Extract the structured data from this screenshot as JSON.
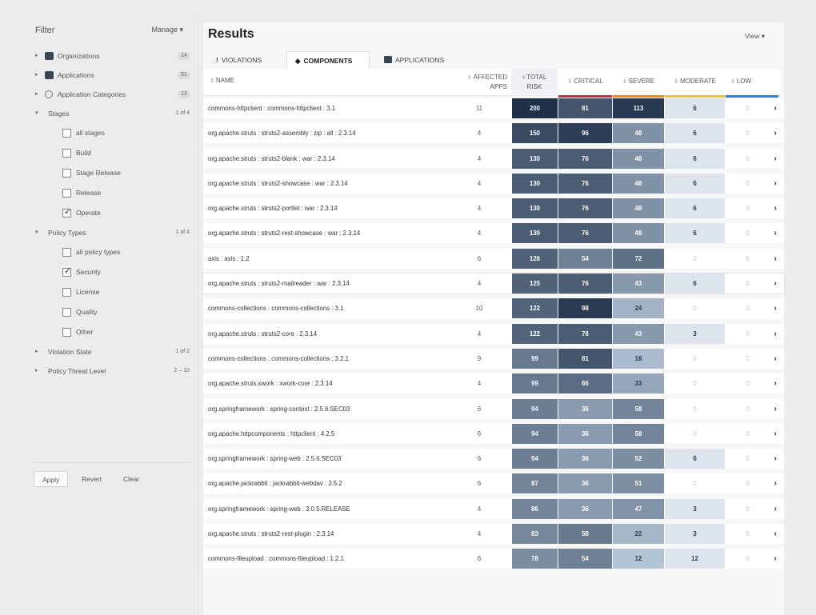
{
  "sidebar": {
    "title": "Filter",
    "manage_label": "Manage ▾",
    "facets_top": [
      {
        "chev": "▸",
        "icon": "dark",
        "label": "Organizations",
        "count": "14"
      },
      {
        "chev": "▸",
        "icon": "dark",
        "label": "Applications",
        "count": "51"
      },
      {
        "chev": "▸",
        "icon": "circle",
        "label": "Application Categories",
        "count": "13"
      }
    ],
    "stages": {
      "chev": "▾",
      "label": "Stages",
      "count": "1 of 4"
    },
    "stage_options": [
      {
        "label": "all stages",
        "checked": false
      },
      {
        "label": "Build",
        "checked": false
      },
      {
        "label": "Stage Release",
        "checked": false
      },
      {
        "label": "Release",
        "checked": false
      },
      {
        "label": "Operate",
        "checked": true
      }
    ],
    "policy_types": {
      "chev": "▾",
      "label": "Policy Types",
      "count": "1 of 4"
    },
    "policy_options": [
      {
        "label": "all policy types",
        "checked": false
      },
      {
        "label": "Security",
        "checked": true
      },
      {
        "label": "License",
        "checked": false
      },
      {
        "label": "Quality",
        "checked": false
      },
      {
        "label": "Other",
        "checked": false
      }
    ],
    "violation_state": {
      "chev": "▸",
      "label": "Violation State",
      "count": "1 of 2"
    },
    "threat_level": {
      "chev": "▸",
      "label": "Policy Threat Level",
      "count": "2 – 10"
    },
    "apply_label": "Apply",
    "revert_label": "Revert",
    "clear_label": "Clear"
  },
  "main": {
    "title": "Results",
    "view_label": "View ▾",
    "tabs": [
      {
        "icon": "!",
        "label": "Violations"
      },
      {
        "icon": "◆",
        "label": "Components"
      },
      {
        "icon": "box",
        "label": "Applications"
      }
    ],
    "headers": {
      "name": "Name",
      "affected_line1": "Affected",
      "affected_line2": "Apps",
      "total_line1": "Total",
      "total_line2": "Risk",
      "critical": "Critical",
      "severe": "Severe",
      "moderate": "Moderate",
      "low": "Low",
      "sort_icon": "⇕",
      "sort_desc_icon": "▾"
    },
    "stripe_colors": {
      "critical": "#b03a48",
      "severe": "#e08a2c",
      "moderate": "#e9c04a",
      "low": "#3a7bd5"
    },
    "rows": [
      {
        "name": "commons-httpclient : commons-httpclient : 3.1",
        "apps": "11",
        "total": "200",
        "critical": "81",
        "severe": "113",
        "moderate": "6",
        "low": "0"
      },
      {
        "name": "org.apache.struts : struts2-assembly : zip : all : 2.3.14",
        "apps": "4",
        "total": "150",
        "critical": "96",
        "severe": "48",
        "moderate": "6",
        "low": "0"
      },
      {
        "name": "org.apache.struts : struts2-blank : war : 2.3.14",
        "apps": "4",
        "total": "130",
        "critical": "76",
        "severe": "48",
        "moderate": "6",
        "low": "0"
      },
      {
        "name": "org.apache.struts : struts2-showcase : war : 2.3.14",
        "apps": "4",
        "total": "130",
        "critical": "76",
        "severe": "48",
        "moderate": "6",
        "low": "0"
      },
      {
        "name": "org.apache.struts : struts2-portlet : war : 2.3.14",
        "apps": "4",
        "total": "130",
        "critical": "76",
        "severe": "48",
        "moderate": "6",
        "low": "0"
      },
      {
        "name": "org.apache.struts : struts2-rest-showcase : war : 2.3.14",
        "apps": "4",
        "total": "130",
        "critical": "76",
        "severe": "48",
        "moderate": "6",
        "low": "0"
      },
      {
        "name": "axis : axis : 1.2",
        "apps": "6",
        "total": "126",
        "critical": "54",
        "severe": "72",
        "moderate": "0",
        "low": "0"
      },
      {
        "name": "org.apache.struts : struts2-mailreader : war : 2.3.14",
        "apps": "4",
        "total": "125",
        "critical": "76",
        "severe": "43",
        "moderate": "6",
        "low": "0"
      },
      {
        "name": "commons-collections : commons-collections : 3.1",
        "apps": "10",
        "total": "122",
        "critical": "98",
        "severe": "24",
        "moderate": "0",
        "low": "0"
      },
      {
        "name": "org.apache.struts : struts2-core : 2.3.14",
        "apps": "4",
        "total": "122",
        "critical": "76",
        "severe": "43",
        "moderate": "3",
        "low": "0"
      },
      {
        "name": "commons-collections : commons-collections : 3.2.1",
        "apps": "9",
        "total": "99",
        "critical": "81",
        "severe": "18",
        "moderate": "0",
        "low": "0"
      },
      {
        "name": "org.apache.struts.xwork : xwork-core : 2.3.14",
        "apps": "4",
        "total": "99",
        "critical": "66",
        "severe": "33",
        "moderate": "0",
        "low": "0"
      },
      {
        "name": "org.springframework : spring-context : 2.5.6.SEC03",
        "apps": "6",
        "total": "94",
        "critical": "36",
        "severe": "58",
        "moderate": "0",
        "low": "0"
      },
      {
        "name": "org.apache.httpcomponents : httpclient : 4.2.5",
        "apps": "6",
        "total": "94",
        "critical": "36",
        "severe": "58",
        "moderate": "0",
        "low": "0"
      },
      {
        "name": "org.springframework : spring-web : 2.5.6.SEC03",
        "apps": "6",
        "total": "94",
        "critical": "36",
        "severe": "52",
        "moderate": "6",
        "low": "0"
      },
      {
        "name": "org.apache.jackrabbit : jackrabbit-webdav : 2.5.2",
        "apps": "6",
        "total": "87",
        "critical": "36",
        "severe": "51",
        "moderate": "0",
        "low": "0"
      },
      {
        "name": "org.springframework : spring-web : 3.0.5.RELEASE",
        "apps": "4",
        "total": "86",
        "critical": "36",
        "severe": "47",
        "moderate": "3",
        "low": "0"
      },
      {
        "name": "org.apache.struts : struts2-rest-plugin : 2.3.14",
        "apps": "4",
        "total": "83",
        "critical": "58",
        "severe": "22",
        "moderate": "3",
        "low": "0"
      },
      {
        "name": "commons-fileupload : commons-fileupload : 1.2.1",
        "apps": "6",
        "total": "78",
        "critical": "54",
        "severe": "12",
        "moderate": "12",
        "low": "0"
      }
    ],
    "row_arrow": "›"
  }
}
